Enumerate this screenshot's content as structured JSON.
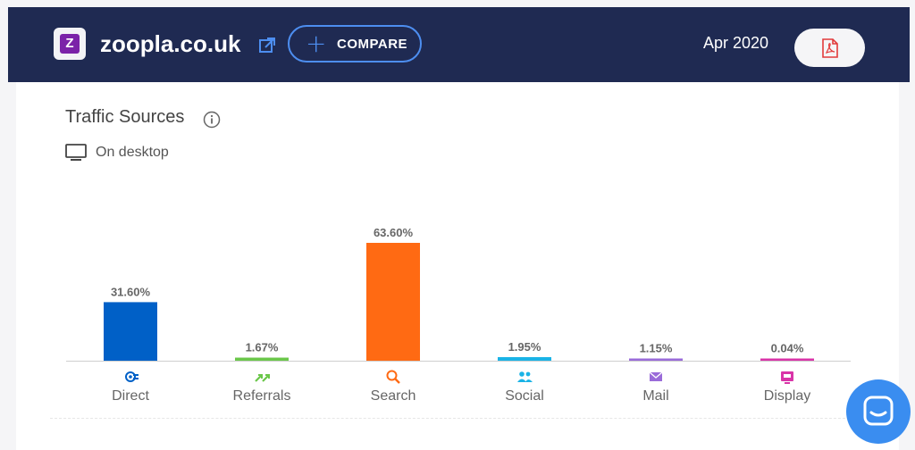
{
  "header": {
    "logo_letter": "Z",
    "site_name": "zoopla.co.uk",
    "compare_label": "COMPARE",
    "date": "Apr 2020",
    "pdf_icon": "pdf-icon",
    "external_link_icon": "external-link-icon"
  },
  "card": {
    "title": "Traffic Sources",
    "subtitle": "On desktop"
  },
  "chart_data": {
    "type": "bar",
    "categories": [
      "Direct",
      "Referrals",
      "Search",
      "Social",
      "Mail",
      "Display"
    ],
    "values": [
      31.6,
      1.67,
      63.6,
      1.95,
      1.15,
      0.04
    ],
    "value_labels": [
      "31.60%",
      "1.67%",
      "63.60%",
      "1.95%",
      "1.15%",
      "0.04%"
    ],
    "colors": [
      "#0060c7",
      "#6bc74a",
      "#ff6a13",
      "#1ab3e6",
      "#9a6bd9",
      "#d934a8"
    ],
    "icons": [
      "direct-icon",
      "referrals-icon",
      "search-icon",
      "social-icon",
      "mail-icon",
      "display-icon"
    ],
    "ylim": [
      0,
      63.6
    ],
    "grid": false,
    "title": "",
    "xlabel": "",
    "ylabel": ""
  }
}
